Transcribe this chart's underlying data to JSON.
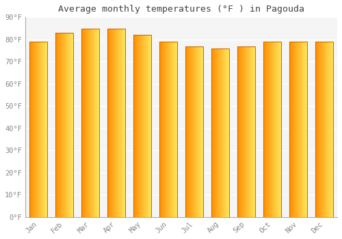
{
  "title": "Average monthly temperatures (°F ) in Pagouda",
  "months": [
    "Jan",
    "Feb",
    "Mar",
    "Apr",
    "May",
    "Jun",
    "Jul",
    "Aug",
    "Sep",
    "Oct",
    "Nov",
    "Dec"
  ],
  "values": [
    79,
    83,
    85,
    85,
    82,
    79,
    77,
    76,
    77,
    79,
    79,
    79
  ],
  "ylim": [
    0,
    90
  ],
  "yticks": [
    0,
    10,
    20,
    30,
    40,
    50,
    60,
    70,
    80,
    90
  ],
  "bar_color_main": "#FFA500",
  "bar_color_light": "#FFD966",
  "bar_edge_color": "#CC7000",
  "background_color": "#FFFFFF",
  "plot_bg_color": "#F5F5F5",
  "grid_color": "#FFFFFF",
  "text_color": "#888888",
  "title_color": "#444444"
}
